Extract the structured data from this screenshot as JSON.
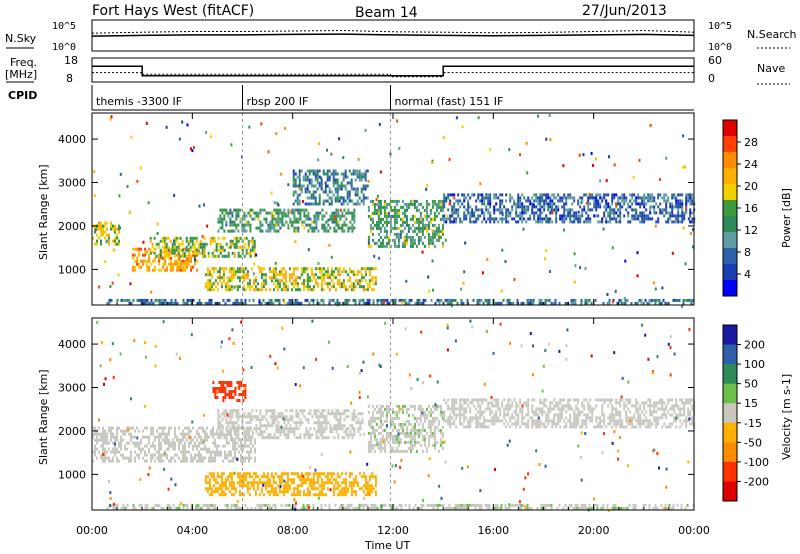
{
  "header": {
    "station": "Fort Hays West (fitACF)",
    "beam": "Beam 14",
    "date": "27/Jun/2013"
  },
  "noise_panel": {
    "left_label": "N.Sky",
    "right_label": "N.Search",
    "left_ticks": [
      "10^5",
      "10^0"
    ],
    "right_ticks": [
      "10^5",
      "10^0"
    ]
  },
  "freq_panel": {
    "left_label_1": "Freq.",
    "left_label_2": "[MHz]",
    "right_label": "Nave",
    "left_ticks": [
      "18",
      "8"
    ],
    "right_ticks": [
      "60",
      "0"
    ]
  },
  "cpid": {
    "label": "CPID",
    "segments": [
      {
        "name": "themis -3300 IF",
        "start_hour": 0.0,
        "end_hour": 6.0
      },
      {
        "name": "rbsp 200 IF",
        "start_hour": 6.0,
        "end_hour": 11.9
      },
      {
        "name": "normal (fast) 151 IF",
        "start_hour": 11.9,
        "end_hour": 24.0
      }
    ]
  },
  "power_panel": {
    "ylabel": "Slant Range [km]",
    "colorbar_label": "Power [dB]",
    "colorbar_ticks": [
      "28",
      "24",
      "20",
      "16",
      "12",
      "8",
      "4"
    ],
    "colorbar_colors": [
      "#e00000",
      "#ff4000",
      "#ff8c00",
      "#ffb000",
      "#f0d000",
      "#3c9b3c",
      "#2e8b57",
      "#5f9ea0",
      "#2e5fa8",
      "#1a3fb0",
      "#0000ff"
    ]
  },
  "velocity_panel": {
    "ylabel": "Slant Range [km]",
    "colorbar_label": "Velocity [m s-1]",
    "colorbar_ticks": [
      "200",
      "100",
      "50",
      "15",
      "-15",
      "-50",
      "-100",
      "-200"
    ],
    "colorbar_colors": [
      "#1a1aa0",
      "#2e5fa8",
      "#2e8b57",
      "#6cc04a",
      "#c8c8c0",
      "#ffb000",
      "#ff8c00",
      "#ff3000",
      "#e00000"
    ]
  },
  "xaxis": {
    "label": "Time UT",
    "ticks": [
      "00:00",
      "04:00",
      "08:00",
      "12:00",
      "16:00",
      "20:00",
      "00:00"
    ]
  },
  "yaxis_ticks": [
    "4000",
    "3000",
    "2000",
    "1000"
  ],
  "chart_data": [
    {
      "type": "line",
      "panel": "noise",
      "xlabel": "",
      "ylabel": "N.Sky / N.Search",
      "y_scale": "log",
      "ylim": [
        1,
        100000
      ],
      "x_range_hours": [
        0,
        24
      ],
      "series": [
        {
          "name": "N.Sky",
          "x": [
            0,
            2,
            4,
            6,
            8,
            10,
            12,
            14,
            16,
            18,
            20,
            22,
            24
          ],
          "values": [
            300,
            400,
            500,
            500,
            600,
            700,
            500,
            400,
            350,
            400,
            500,
            600,
            400
          ]
        },
        {
          "name": "N.Search",
          "x": [
            0,
            2,
            4,
            6,
            8,
            10,
            12,
            14,
            16,
            18,
            20,
            22,
            24
          ],
          "values": [
            1000,
            1500,
            2000,
            2000,
            2500,
            3000,
            1800,
            1500,
            1200,
            1400,
            2000,
            3000,
            1500
          ]
        }
      ]
    },
    {
      "type": "line",
      "panel": "freq",
      "xlabel": "",
      "ylabel": "Freq. [MHz] / Nave",
      "series": [
        {
          "name": "Freq.",
          "x": [
            0,
            2.0,
            2.0,
            14.0,
            14.0,
            24
          ],
          "values": [
            15.0,
            15.0,
            10.5,
            10.5,
            15.0,
            15.0
          ]
        },
        {
          "name": "Nave",
          "x": [
            0,
            2.0,
            2.0,
            6.0,
            6.0,
            11.9,
            11.9,
            14.0,
            14.0,
            24
          ],
          "values": [
            24,
            24,
            19,
            19,
            19,
            19,
            12,
            12,
            24,
            24
          ]
        }
      ]
    },
    {
      "type": "heatmap",
      "panel": "power",
      "xlabel": "Time UT",
      "ylabel": "Slant Range [km]",
      "ylim": [
        180,
        4600
      ],
      "x_range_hours": [
        0,
        24
      ],
      "clim": [
        0,
        30
      ],
      "bands": [
        {
          "h0": 0.0,
          "h1": 1.1,
          "r0": 1550,
          "r1": 2100,
          "value": 18
        },
        {
          "h0": 1.6,
          "h1": 4.2,
          "r0": 950,
          "r1": 1500,
          "value": 22
        },
        {
          "h0": 2.3,
          "h1": 6.5,
          "r0": 1300,
          "r1": 1750,
          "value": 16
        },
        {
          "h0": 5.0,
          "h1": 10.5,
          "r0": 1900,
          "r1": 2400,
          "value": 12
        },
        {
          "h0": 8.0,
          "h1": 11.0,
          "r0": 2500,
          "r1": 3300,
          "value": 8
        },
        {
          "h0": 11.0,
          "h1": 14.0,
          "r0": 1500,
          "r1": 2600,
          "value": 12
        },
        {
          "h0": 4.5,
          "h1": 11.3,
          "r0": 520,
          "r1": 1050,
          "value": 18
        },
        {
          "h0": 14.0,
          "h1": 24.0,
          "r0": 2100,
          "r1": 2750,
          "value": 6
        },
        {
          "h0": 0.5,
          "h1": 24.0,
          "r0": 200,
          "r1": 320,
          "value": 8
        }
      ]
    },
    {
      "type": "heatmap",
      "panel": "velocity",
      "xlabel": "Time UT",
      "ylabel": "Slant Range [km]",
      "ylim": [
        180,
        4600
      ],
      "x_range_hours": [
        0,
        24
      ],
      "clim": [
        -250,
        250
      ],
      "bands": [
        {
          "h0": 0.0,
          "h1": 6.5,
          "r0": 1300,
          "r1": 2100,
          "value": 0
        },
        {
          "h0": 4.5,
          "h1": 11.3,
          "r0": 520,
          "r1": 1050,
          "value": -60
        },
        {
          "h0": 5.0,
          "h1": 10.8,
          "r0": 1850,
          "r1": 2500,
          "value": 0
        },
        {
          "h0": 11.0,
          "h1": 14.0,
          "r0": 1500,
          "r1": 2600,
          "value": 20
        },
        {
          "h0": 14.0,
          "h1": 24.0,
          "r0": 2100,
          "r1": 2750,
          "value": 0
        },
        {
          "h0": 4.8,
          "h1": 6.1,
          "r0": 2700,
          "r1": 3150,
          "value": -200
        },
        {
          "h0": 0.5,
          "h1": 24.0,
          "r0": 200,
          "r1": 320,
          "value": 20
        }
      ]
    }
  ]
}
